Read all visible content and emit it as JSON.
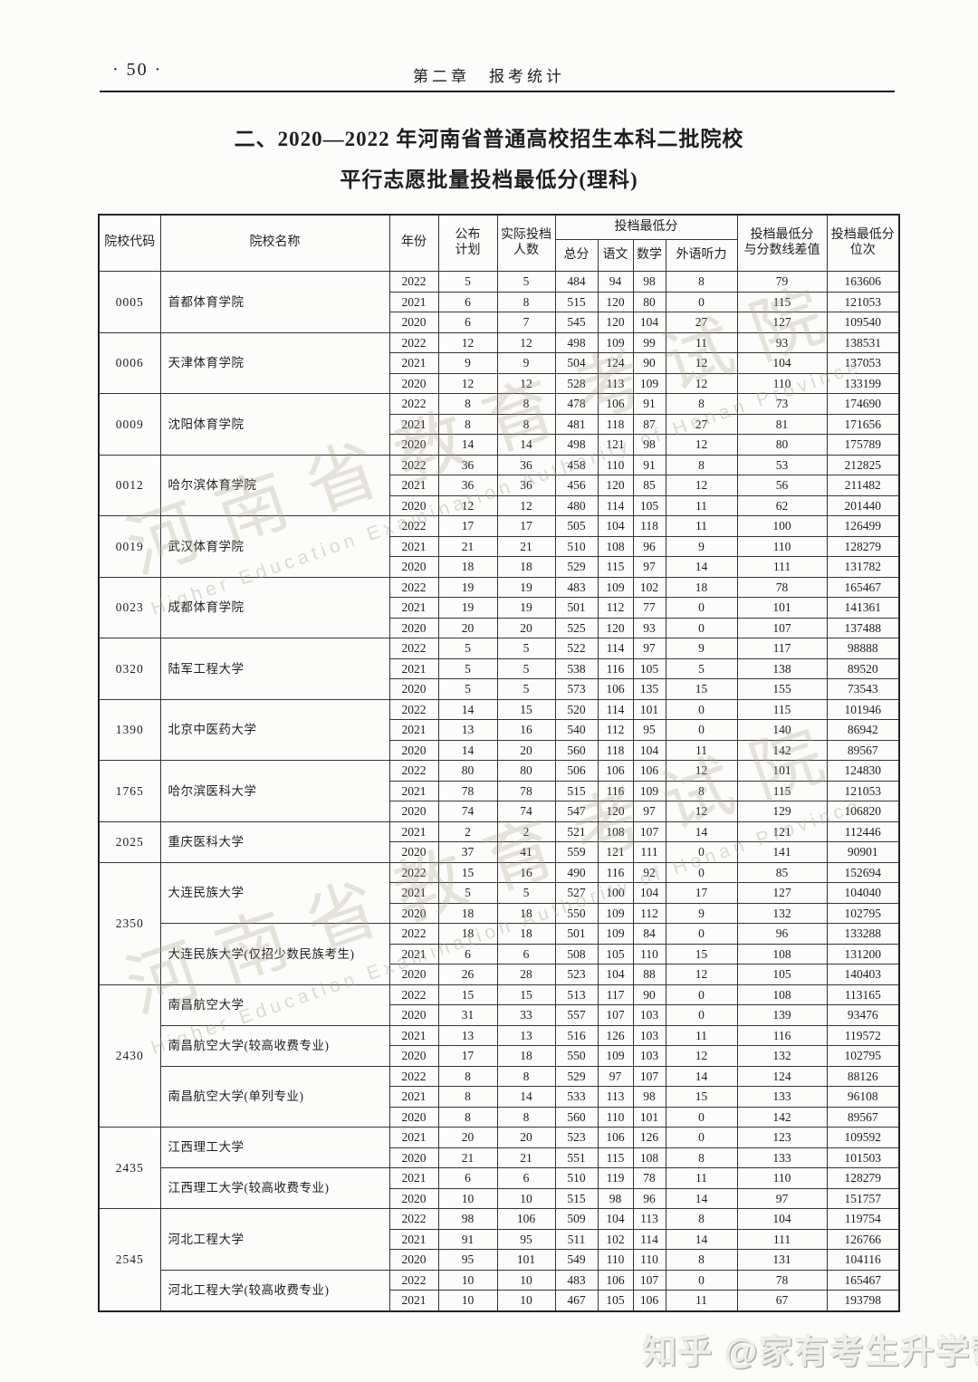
{
  "page": {
    "page_number": "· 50 ·",
    "chapter_header": "第二章　报考统计",
    "title_line1": "二、2020—2022 年河南省普通高校招生本科二批院校",
    "title_line2": "平行志愿批量投档最低分(理科)"
  },
  "watermarks": {
    "diagonal_cn": "河南省教育考试院",
    "diagonal_en": "Higher Education Examination Authority of Henan Province",
    "bottom_credit": "知乎 @家有考生升学帮"
  },
  "table": {
    "headers": {
      "code": "院校代码",
      "name": "院校名称",
      "year": "年份",
      "plan": "公布\n计划",
      "actual": "实际投档\n人数",
      "min_score_group": "投档最低分",
      "total": "总分",
      "chinese": "语文",
      "math": "数学",
      "listening": "外语听力",
      "diff": "投档最低分\n与分数线差值",
      "rank": "投档最低分\n位次"
    },
    "row_fields": [
      "year",
      "plan",
      "actual",
      "total",
      "chinese",
      "math",
      "listening",
      "diff",
      "rank"
    ],
    "groups": [
      {
        "code": "0005",
        "schools": [
          {
            "name": "首都体育学院",
            "rows": [
              [
                2022,
                5,
                5,
                484,
                94,
                98,
                8,
                79,
                163606
              ],
              [
                2021,
                6,
                8,
                515,
                120,
                80,
                0,
                115,
                121053
              ],
              [
                2020,
                6,
                7,
                545,
                120,
                104,
                27,
                127,
                109540
              ]
            ]
          }
        ]
      },
      {
        "code": "0006",
        "schools": [
          {
            "name": "天津体育学院",
            "rows": [
              [
                2022,
                12,
                12,
                498,
                109,
                99,
                11,
                93,
                138531
              ],
              [
                2021,
                9,
                9,
                504,
                124,
                90,
                12,
                104,
                137053
              ],
              [
                2020,
                12,
                12,
                528,
                113,
                109,
                12,
                110,
                133199
              ]
            ]
          }
        ]
      },
      {
        "code": "0009",
        "schools": [
          {
            "name": "沈阳体育学院",
            "rows": [
              [
                2022,
                8,
                8,
                478,
                106,
                91,
                8,
                73,
                174690
              ],
              [
                2021,
                8,
                8,
                481,
                118,
                87,
                27,
                81,
                171656
              ],
              [
                2020,
                14,
                14,
                498,
                121,
                98,
                12,
                80,
                175789
              ]
            ]
          }
        ]
      },
      {
        "code": "0012",
        "schools": [
          {
            "name": "哈尔滨体育学院",
            "rows": [
              [
                2022,
                36,
                36,
                458,
                110,
                91,
                8,
                53,
                212825
              ],
              [
                2021,
                36,
                36,
                456,
                120,
                85,
                12,
                56,
                211482
              ],
              [
                2020,
                12,
                12,
                480,
                114,
                105,
                11,
                62,
                201440
              ]
            ]
          }
        ]
      },
      {
        "code": "0019",
        "schools": [
          {
            "name": "武汉体育学院",
            "rows": [
              [
                2022,
                17,
                17,
                505,
                104,
                118,
                11,
                100,
                126499
              ],
              [
                2021,
                21,
                21,
                510,
                108,
                96,
                9,
                110,
                128279
              ],
              [
                2020,
                18,
                18,
                529,
                115,
                97,
                14,
                111,
                131782
              ]
            ]
          }
        ]
      },
      {
        "code": "0023",
        "schools": [
          {
            "name": "成都体育学院",
            "rows": [
              [
                2022,
                19,
                19,
                483,
                109,
                102,
                18,
                78,
                165467
              ],
              [
                2021,
                19,
                19,
                501,
                112,
                77,
                0,
                101,
                141361
              ],
              [
                2020,
                20,
                20,
                525,
                120,
                93,
                0,
                107,
                137488
              ]
            ]
          }
        ]
      },
      {
        "code": "0320",
        "schools": [
          {
            "name": "陆军工程大学",
            "rows": [
              [
                2022,
                5,
                5,
                522,
                114,
                97,
                9,
                117,
                98888
              ],
              [
                2021,
                5,
                5,
                538,
                116,
                105,
                5,
                138,
                89520
              ],
              [
                2020,
                5,
                5,
                573,
                106,
                135,
                15,
                155,
                73543
              ]
            ]
          }
        ]
      },
      {
        "code": "1390",
        "schools": [
          {
            "name": "北京中医药大学",
            "rows": [
              [
                2022,
                14,
                15,
                520,
                114,
                101,
                0,
                115,
                101946
              ],
              [
                2021,
                13,
                16,
                540,
                112,
                95,
                0,
                140,
                86942
              ],
              [
                2020,
                14,
                20,
                560,
                118,
                104,
                11,
                142,
                89567
              ]
            ]
          }
        ]
      },
      {
        "code": "1765",
        "schools": [
          {
            "name": "哈尔滨医科大学",
            "rows": [
              [
                2022,
                80,
                80,
                506,
                106,
                106,
                12,
                101,
                124830
              ],
              [
                2021,
                78,
                78,
                515,
                116,
                109,
                8,
                115,
                121053
              ],
              [
                2020,
                74,
                74,
                547,
                120,
                97,
                12,
                129,
                106820
              ]
            ]
          }
        ]
      },
      {
        "code": "2025",
        "schools": [
          {
            "name": "重庆医科大学",
            "rows": [
              [
                2021,
                2,
                2,
                521,
                108,
                107,
                14,
                121,
                112446
              ],
              [
                2020,
                37,
                41,
                559,
                121,
                111,
                0,
                141,
                90901
              ]
            ]
          }
        ]
      },
      {
        "code": "2350",
        "schools": [
          {
            "name": "大连民族大学",
            "rows": [
              [
                2022,
                15,
                16,
                490,
                116,
                92,
                0,
                85,
                152694
              ],
              [
                2021,
                5,
                5,
                527,
                100,
                104,
                17,
                127,
                104040
              ],
              [
                2020,
                18,
                18,
                550,
                109,
                112,
                9,
                132,
                102795
              ]
            ]
          },
          {
            "name": "大连民族大学(仅招少数民族考生)",
            "rows": [
              [
                2022,
                18,
                18,
                501,
                109,
                84,
                0,
                96,
                133288
              ],
              [
                2021,
                6,
                6,
                508,
                105,
                110,
                15,
                108,
                131200
              ],
              [
                2020,
                26,
                28,
                523,
                104,
                88,
                12,
                105,
                140403
              ]
            ]
          }
        ]
      },
      {
        "code": "2430",
        "schools": [
          {
            "name": "南昌航空大学",
            "rows": [
              [
                2022,
                15,
                15,
                513,
                117,
                90,
                0,
                108,
                113165
              ],
              [
                2020,
                31,
                33,
                557,
                107,
                103,
                0,
                139,
                93476
              ]
            ]
          },
          {
            "name": "南昌航空大学(较高收费专业)",
            "rows": [
              [
                2021,
                13,
                13,
                516,
                126,
                103,
                11,
                116,
                119572
              ],
              [
                2020,
                17,
                18,
                550,
                109,
                103,
                12,
                132,
                102795
              ]
            ]
          },
          {
            "name": "南昌航空大学(单列专业)",
            "rows": [
              [
                2022,
                8,
                8,
                529,
                97,
                107,
                14,
                124,
                88126
              ],
              [
                2021,
                8,
                14,
                533,
                113,
                98,
                15,
                133,
                96108
              ],
              [
                2020,
                8,
                8,
                560,
                110,
                101,
                0,
                142,
                89567
              ]
            ]
          }
        ]
      },
      {
        "code": "2435",
        "schools": [
          {
            "name": "江西理工大学",
            "rows": [
              [
                2021,
                20,
                20,
                523,
                106,
                126,
                0,
                123,
                109592
              ],
              [
                2020,
                21,
                21,
                551,
                115,
                108,
                8,
                133,
                101503
              ]
            ]
          },
          {
            "name": "江西理工大学(较高收费专业)",
            "rows": [
              [
                2021,
                6,
                6,
                510,
                119,
                78,
                11,
                110,
                128279
              ],
              [
                2020,
                10,
                10,
                515,
                98,
                96,
                14,
                97,
                151757
              ]
            ]
          }
        ]
      },
      {
        "code": "2545",
        "schools": [
          {
            "name": "河北工程大学",
            "rows": [
              [
                2022,
                98,
                106,
                509,
                104,
                113,
                8,
                104,
                119754
              ],
              [
                2021,
                91,
                95,
                511,
                102,
                114,
                14,
                111,
                126766
              ],
              [
                2020,
                95,
                101,
                549,
                110,
                110,
                8,
                131,
                104116
              ]
            ]
          },
          {
            "name": "河北工程大学(较高收费专业)",
            "rows": [
              [
                2022,
                10,
                10,
                483,
                106,
                107,
                0,
                78,
                165467
              ],
              [
                2021,
                10,
                10,
                467,
                105,
                106,
                11,
                67,
                193798
              ]
            ]
          }
        ]
      }
    ]
  }
}
